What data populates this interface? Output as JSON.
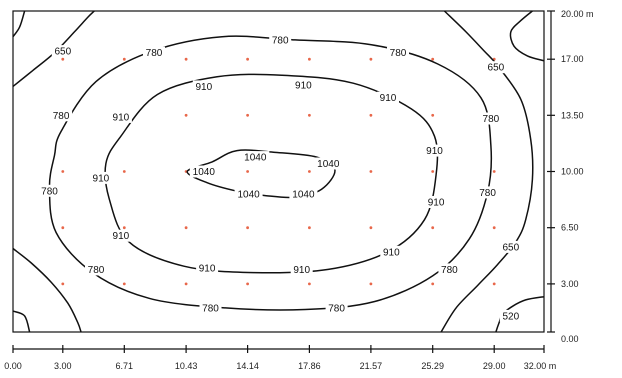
{
  "chart_data": {
    "type": "contour",
    "x_ticks": [
      "0.00",
      "3.00",
      "6.71",
      "10.43",
      "14.14",
      "17.86",
      "21.57",
      "25.29",
      "29.00",
      "32.00 m"
    ],
    "y_ticks": [
      "20.00 m",
      "17.00",
      "13.50",
      "10.00",
      "6.50",
      "3.00",
      "0.00"
    ],
    "x_tick_values": [
      0,
      3.0,
      6.71,
      10.43,
      14.14,
      17.86,
      21.57,
      25.29,
      29.0,
      32.0
    ],
    "y_tick_values": [
      20.0,
      17.0,
      13.5,
      10.0,
      6.5,
      3.0,
      0.0
    ],
    "xlim": [
      0,
      32
    ],
    "ylim": [
      0,
      20
    ],
    "sample_points": {
      "x": [
        3.0,
        6.71,
        10.43,
        14.14,
        17.86,
        21.57,
        25.29,
        29.0
      ],
      "y": [
        17.0,
        13.5,
        10.0,
        6.5,
        3.0
      ]
    },
    "contour_levels": [
      "520",
      "650",
      "780",
      "910",
      "1040"
    ],
    "contour_labels": [
      {
        "text": "650",
        "x": 3.0,
        "y": 17.5
      },
      {
        "text": "780",
        "x": 8.5,
        "y": 17.4
      },
      {
        "text": "780",
        "x": 16.1,
        "y": 18.2
      },
      {
        "text": "780",
        "x": 23.2,
        "y": 17.4
      },
      {
        "text": "650",
        "x": 29.1,
        "y": 16.5
      },
      {
        "text": "780",
        "x": 2.9,
        "y": 13.5
      },
      {
        "text": "910",
        "x": 6.5,
        "y": 13.4
      },
      {
        "text": "910",
        "x": 11.5,
        "y": 15.3
      },
      {
        "text": "910",
        "x": 17.5,
        "y": 15.4
      },
      {
        "text": "910",
        "x": 22.6,
        "y": 14.6
      },
      {
        "text": "780",
        "x": 28.8,
        "y": 13.3
      },
      {
        "text": "910",
        "x": 25.4,
        "y": 11.3
      },
      {
        "text": "1040",
        "x": 14.6,
        "y": 10.9
      },
      {
        "text": "1040",
        "x": 19.0,
        "y": 10.5
      },
      {
        "text": "1040",
        "x": 11.5,
        "y": 10.0
      },
      {
        "text": "910",
        "x": 5.3,
        "y": 9.6
      },
      {
        "text": "780",
        "x": 2.2,
        "y": 8.8
      },
      {
        "text": "1040",
        "x": 14.2,
        "y": 8.6
      },
      {
        "text": "1040",
        "x": 17.5,
        "y": 8.6
      },
      {
        "text": "910",
        "x": 25.5,
        "y": 8.1
      },
      {
        "text": "780",
        "x": 28.6,
        "y": 8.7
      },
      {
        "text": "910",
        "x": 6.5,
        "y": 6.0
      },
      {
        "text": "910",
        "x": 22.8,
        "y": 5.0
      },
      {
        "text": "650",
        "x": 30.0,
        "y": 5.3
      },
      {
        "text": "780",
        "x": 5.0,
        "y": 3.9
      },
      {
        "text": "910",
        "x": 11.7,
        "y": 4.0
      },
      {
        "text": "910",
        "x": 17.4,
        "y": 3.9
      },
      {
        "text": "780",
        "x": 26.3,
        "y": 3.9
      },
      {
        "text": "780",
        "x": 11.9,
        "y": 1.5
      },
      {
        "text": "780",
        "x": 19.5,
        "y": 1.5
      },
      {
        "text": "520",
        "x": 30.0,
        "y": 1.0
      }
    ],
    "contours": [
      {
        "level": "1040",
        "closed": true,
        "points": [
          [
            10.5,
            10.0
          ],
          [
            12.0,
            10.6
          ],
          [
            13.5,
            11.3
          ],
          [
            15.7,
            11.2
          ],
          [
            18.3,
            10.9
          ],
          [
            19.4,
            10.1
          ],
          [
            18.6,
            8.9
          ],
          [
            17.0,
            8.4
          ],
          [
            15.2,
            8.5
          ],
          [
            13.4,
            8.8
          ],
          [
            11.7,
            9.3
          ]
        ]
      },
      {
        "level": "910",
        "closed": true,
        "points": [
          [
            6.5,
            12.2
          ],
          [
            8.7,
            14.8
          ],
          [
            12.3,
            15.9
          ],
          [
            16.2,
            16.0
          ],
          [
            20.5,
            15.5
          ],
          [
            24.0,
            13.9
          ],
          [
            25.4,
            12.2
          ],
          [
            25.5,
            9.8
          ],
          [
            24.8,
            7.0
          ],
          [
            22.6,
            5.0
          ],
          [
            19.0,
            3.9
          ],
          [
            14.5,
            3.7
          ],
          [
            10.3,
            4.1
          ],
          [
            7.0,
            5.6
          ],
          [
            5.8,
            8.3
          ],
          [
            5.6,
            10.5
          ]
        ]
      },
      {
        "level": "780",
        "closed": true,
        "points": [
          [
            2.9,
            12.5
          ],
          [
            5.0,
            15.6
          ],
          [
            8.4,
            17.5
          ],
          [
            12.6,
            18.4
          ],
          [
            17.0,
            18.2
          ],
          [
            21.6,
            17.9
          ],
          [
            25.6,
            16.7
          ],
          [
            28.2,
            14.6
          ],
          [
            28.8,
            11.6
          ],
          [
            28.6,
            8.7
          ],
          [
            27.5,
            5.8
          ],
          [
            25.3,
            3.5
          ],
          [
            21.8,
            1.9
          ],
          [
            17.6,
            1.4
          ],
          [
            12.8,
            1.5
          ],
          [
            8.2,
            2.1
          ],
          [
            4.8,
            3.7
          ],
          [
            2.6,
            6.2
          ],
          [
            2.2,
            9.0
          ],
          [
            2.5,
            11.0
          ]
        ]
      },
      {
        "level": "650",
        "closed": false,
        "points": [
          [
            0,
            15.3
          ],
          [
            1.2,
            16.3
          ],
          [
            2.5,
            17.4
          ],
          [
            3.7,
            18.7
          ],
          [
            4.5,
            19.6
          ],
          [
            4.9,
            20.0
          ]
        ]
      },
      {
        "level": "650",
        "closed": false,
        "points": [
          [
            26.0,
            20.0
          ],
          [
            27.3,
            18.7
          ],
          [
            28.4,
            17.5
          ],
          [
            29.2,
            16.6
          ],
          [
            30.6,
            14.5
          ],
          [
            31.2,
            12.0
          ],
          [
            31.3,
            9.5
          ],
          [
            30.9,
            7.0
          ],
          [
            30.3,
            5.6
          ],
          [
            29.2,
            4.2
          ],
          [
            28.0,
            2.9
          ],
          [
            26.7,
            1.5
          ],
          [
            25.8,
            0.0
          ]
        ]
      },
      {
        "level": "650",
        "closed": false,
        "points": [
          [
            0,
            5.2
          ],
          [
            1.1,
            4.3
          ],
          [
            2.3,
            3.1
          ],
          [
            3.3,
            1.8
          ],
          [
            3.9,
            0.6
          ],
          [
            4.1,
            0.0
          ]
        ]
      },
      {
        "level": "520",
        "closed": false,
        "points": [
          [
            31.3,
            20.0
          ],
          [
            30.6,
            19.4
          ],
          [
            30.0,
            18.7
          ],
          [
            30.2,
            17.8
          ],
          [
            31.0,
            17.2
          ],
          [
            32.0,
            16.9
          ]
        ]
      },
      {
        "level": "520",
        "closed": false,
        "points": [
          [
            0,
            18.4
          ],
          [
            0.4,
            19.0
          ],
          [
            0.7,
            20.0
          ]
        ]
      },
      {
        "level": "520",
        "closed": false,
        "points": [
          [
            0,
            1.3
          ],
          [
            0.7,
            1.0
          ],
          [
            1.0,
            0.0
          ]
        ]
      },
      {
        "level": "520",
        "closed": false,
        "points": [
          [
            29.1,
            0.0
          ],
          [
            29.3,
            0.6
          ],
          [
            29.5,
            1.1
          ],
          [
            30.1,
            1.6
          ],
          [
            30.9,
            2.0
          ],
          [
            32.0,
            2.2
          ]
        ]
      }
    ],
    "colors": {
      "contour": "#111111",
      "sample_point": "#e8674a",
      "axis": "#111111"
    }
  }
}
